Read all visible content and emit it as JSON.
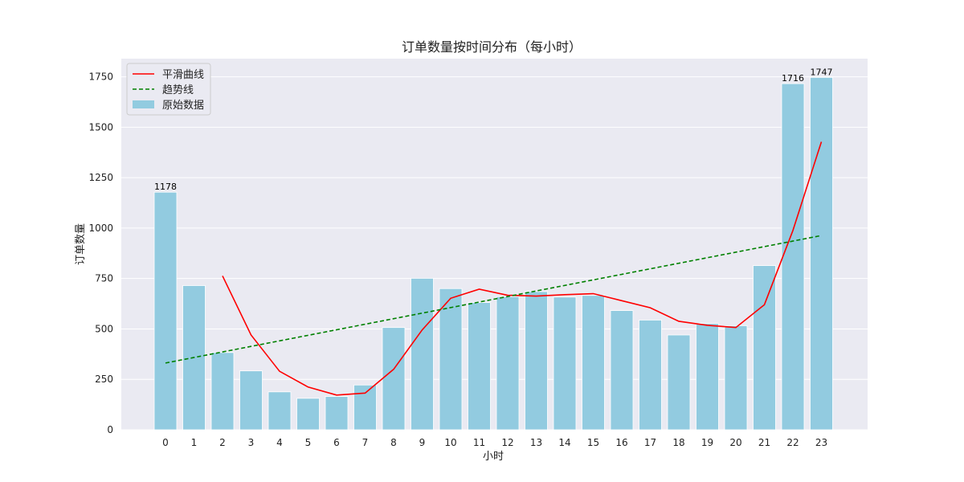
{
  "chart_data": {
    "type": "bar",
    "title": "订单数量按时间分布（每小时）",
    "xlabel": "小时",
    "ylabel": "订单数量",
    "ylim": [
      0,
      1840
    ],
    "yticks": [
      0,
      250,
      500,
      750,
      1000,
      1250,
      1500,
      1750
    ],
    "grid": true,
    "legend_position": "top-left",
    "categories": [
      "0",
      "1",
      "2",
      "3",
      "4",
      "5",
      "6",
      "7",
      "8",
      "9",
      "10",
      "11",
      "12",
      "13",
      "14",
      "15",
      "16",
      "17",
      "18",
      "19",
      "20",
      "21",
      "22",
      "23"
    ],
    "series": [
      {
        "name": "原始数据",
        "kind": "bar",
        "color": "#92cbe0",
        "values": [
          1178,
          715,
          383,
          292,
          188,
          156,
          165,
          222,
          507,
          751,
          700,
          631,
          660,
          685,
          658,
          666,
          591,
          544,
          470,
          527,
          516,
          814,
          1716,
          1747
        ]
      },
      {
        "name": "平滑曲线",
        "kind": "line",
        "color": "#ff0000",
        "x": [
          "2",
          "3",
          "4",
          "5",
          "6",
          "7",
          "8",
          "9",
          "10",
          "11",
          "12",
          "13",
          "14",
          "15",
          "16",
          "17",
          "18",
          "19",
          "20",
          "21",
          "22",
          "23"
        ],
        "values": [
          763,
          470,
          290,
          212,
          172,
          182,
          300,
          495,
          652,
          697,
          667,
          663,
          670,
          675,
          640,
          605,
          538,
          518,
          507,
          620,
          988,
          1428
        ]
      },
      {
        "name": "趋势线",
        "kind": "line",
        "style": "dashed",
        "color": "#008000",
        "x": [
          "0",
          "23"
        ],
        "values": [
          331,
          963
        ]
      }
    ],
    "bar_labels": [
      {
        "category": "0",
        "text": "1178"
      },
      {
        "category": "22",
        "text": "1716"
      },
      {
        "category": "23",
        "text": "1747"
      }
    ],
    "legend": [
      "平滑曲线",
      "趋势线",
      "原始数据"
    ],
    "colors": {
      "plot_background": "#eaeaf2",
      "grid": "#ffffff"
    }
  }
}
